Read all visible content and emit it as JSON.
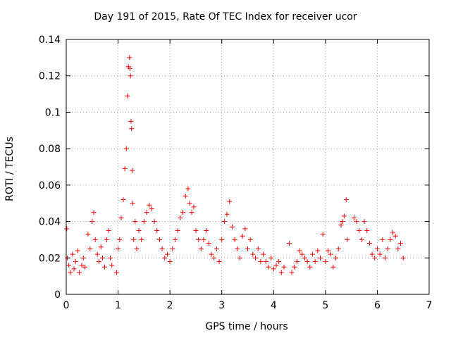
{
  "chart_data": {
    "type": "scatter",
    "title": "Day 191 of 2015, Rate Of TEC Index for receiver ucor",
    "xlabel": "GPS time / hours",
    "ylabel": "ROTI / TECUs",
    "xlim": [
      0,
      7
    ],
    "ylim": [
      0,
      0.14
    ],
    "xticks": [
      0,
      1,
      2,
      3,
      4,
      5,
      6,
      7
    ],
    "xtick_labels": [
      "0",
      "1",
      "2",
      "3",
      "4",
      "5",
      "6",
      "7"
    ],
    "yticks": [
      0,
      0.02,
      0.04,
      0.06,
      0.08,
      0.1,
      0.12,
      0.14
    ],
    "ytick_labels": [
      "0",
      "0.02",
      "0.04",
      "0.06",
      "0.08",
      "0.1",
      "0.12",
      "0.14"
    ],
    "grid": true,
    "marker": "+",
    "color": "#ff0000",
    "series": [
      {
        "name": "ROTI",
        "x": [
          0.01,
          0.02,
          0.05,
          0.08,
          0.12,
          0.15,
          0.18,
          0.22,
          0.25,
          0.3,
          0.33,
          0.36,
          0.42,
          0.46,
          0.5,
          0.53,
          0.56,
          0.6,
          0.63,
          0.67,
          0.7,
          0.74,
          0.78,
          0.82,
          0.85,
          0.88,
          0.97,
          1.0,
          1.03,
          1.06,
          1.1,
          1.13,
          1.16,
          1.18,
          1.2,
          1.22,
          1.23,
          1.24,
          1.25,
          1.26,
          1.27,
          1.28,
          1.3,
          1.33,
          1.36,
          1.4,
          1.45,
          1.5,
          1.55,
          1.6,
          1.65,
          1.7,
          1.75,
          1.8,
          1.85,
          1.9,
          1.95,
          2.0,
          2.05,
          2.1,
          2.15,
          2.2,
          2.25,
          2.3,
          2.35,
          2.38,
          2.42,
          2.46,
          2.5,
          2.55,
          2.6,
          2.65,
          2.7,
          2.75,
          2.8,
          2.85,
          2.9,
          2.95,
          3.0,
          3.05,
          3.1,
          3.15,
          3.2,
          3.25,
          3.3,
          3.35,
          3.4,
          3.45,
          3.5,
          3.55,
          3.6,
          3.65,
          3.7,
          3.75,
          3.8,
          3.85,
          3.9,
          3.95,
          4.0,
          4.05,
          4.1,
          4.15,
          4.2,
          4.3,
          4.35,
          4.4,
          4.45,
          4.5,
          4.55,
          4.6,
          4.65,
          4.7,
          4.75,
          4.8,
          4.85,
          4.9,
          4.95,
          5.0,
          5.05,
          5.1,
          5.15,
          5.2,
          5.25,
          5.3,
          5.33,
          5.36,
          5.4,
          5.42,
          5.55,
          5.6,
          5.65,
          5.7,
          5.75,
          5.8,
          5.85,
          5.9,
          5.95,
          6.0,
          6.05,
          6.1,
          6.15,
          6.2,
          6.25,
          6.3,
          6.35,
          6.4,
          6.45,
          6.5
        ],
        "y": [
          0.036,
          0.02,
          0.016,
          0.012,
          0.022,
          0.014,
          0.018,
          0.024,
          0.012,
          0.016,
          0.02,
          0.015,
          0.033,
          0.025,
          0.04,
          0.045,
          0.03,
          0.022,
          0.018,
          0.026,
          0.02,
          0.015,
          0.03,
          0.035,
          0.02,
          0.016,
          0.012,
          0.025,
          0.03,
          0.042,
          0.052,
          0.069,
          0.08,
          0.109,
          0.125,
          0.13,
          0.124,
          0.12,
          0.095,
          0.091,
          0.068,
          0.05,
          0.03,
          0.04,
          0.025,
          0.035,
          0.03,
          0.04,
          0.045,
          0.049,
          0.047,
          0.04,
          0.035,
          0.03,
          0.025,
          0.02,
          0.022,
          0.018,
          0.025,
          0.03,
          0.035,
          0.042,
          0.045,
          0.054,
          0.058,
          0.05,
          0.045,
          0.048,
          0.035,
          0.03,
          0.025,
          0.03,
          0.035,
          0.028,
          0.022,
          0.02,
          0.025,
          0.018,
          0.03,
          0.04,
          0.044,
          0.051,
          0.037,
          0.03,
          0.025,
          0.02,
          0.032,
          0.036,
          0.025,
          0.03,
          0.022,
          0.02,
          0.025,
          0.018,
          0.022,
          0.018,
          0.015,
          0.02,
          0.014,
          0.016,
          0.018,
          0.012,
          0.015,
          0.028,
          0.012,
          0.015,
          0.018,
          0.024,
          0.022,
          0.02,
          0.018,
          0.015,
          0.022,
          0.018,
          0.024,
          0.02,
          0.033,
          0.018,
          0.024,
          0.022,
          0.015,
          0.02,
          0.025,
          0.038,
          0.04,
          0.043,
          0.052,
          0.03,
          0.042,
          0.04,
          0.035,
          0.03,
          0.04,
          0.035,
          0.028,
          0.022,
          0.02,
          0.025,
          0.022,
          0.03,
          0.02,
          0.025,
          0.03,
          0.034,
          0.032,
          0.025,
          0.028,
          0.02
        ]
      }
    ]
  }
}
